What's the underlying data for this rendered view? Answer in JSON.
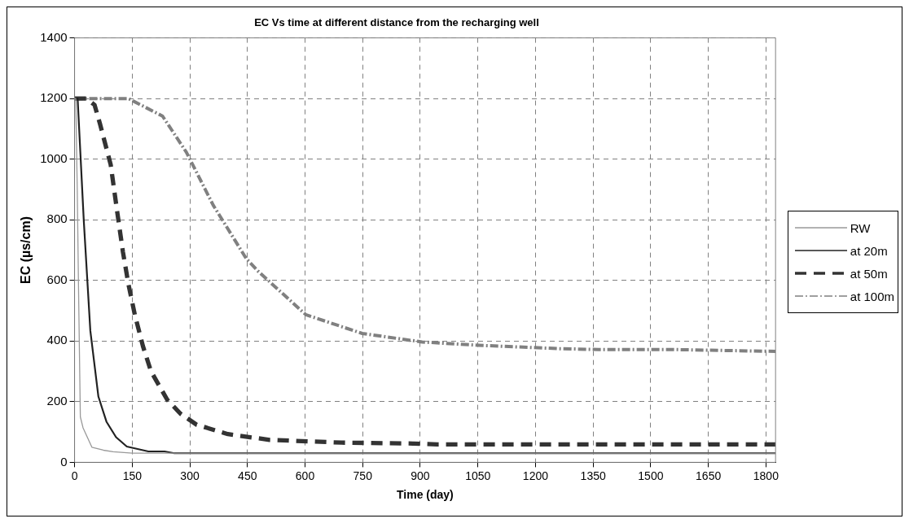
{
  "chart_data": {
    "type": "line",
    "title": "EC Vs time at different distance from the recharging well",
    "xlabel": "Time (day)",
    "ylabel": "EC (µs/cm)",
    "xlim": [
      0,
      1825
    ],
    "xticks": [
      0,
      150,
      300,
      450,
      600,
      750,
      900,
      1050,
      1200,
      1350,
      1500,
      1650,
      1800
    ],
    "ylim": [
      0,
      1400
    ],
    "yticks": [
      0,
      200,
      400,
      600,
      800,
      1000,
      1200,
      1400
    ],
    "grid": true,
    "legend": "right",
    "marker": "none",
    "series": [
      {
        "name": "RW",
        "color": "#999999",
        "line_style": "solid",
        "x": [
          0,
          3,
          7,
          10,
          15,
          22,
          45,
          75,
          100,
          150,
          300,
          600,
          900,
          1200,
          1500,
          1825
        ],
        "values": [
          1200,
          1200,
          900,
          600,
          150,
          114,
          50,
          40,
          35,
          30,
          30,
          30,
          30,
          30,
          30,
          30
        ]
      },
      {
        "name": "at 20m",
        "color": "#222222",
        "line_style": "solid",
        "x": [
          0,
          8,
          10,
          24,
          41,
          62,
          83,
          108,
          136,
          192,
          234,
          260,
          600,
          1000,
          1400,
          1825
        ],
        "values": [
          1200,
          1200,
          1148,
          796,
          434,
          217,
          134,
          83,
          52,
          36,
          36,
          30,
          30,
          30,
          30,
          30
        ]
      },
      {
        "name": "at 50m",
        "color": "#333333",
        "line_style": "dashed",
        "x": [
          0,
          31,
          52,
          66,
          94,
          112,
          126,
          140,
          157,
          178,
          199,
          241,
          276,
          318,
          399,
          508,
          695,
          881,
          944,
          1200,
          1500,
          1825
        ],
        "values": [
          1200,
          1200,
          1179,
          1117,
          982,
          817,
          693,
          589,
          486,
          383,
          300,
          207,
          160,
          124,
          93,
          74,
          65,
          62,
          59,
          59,
          59,
          59
        ]
      },
      {
        "name": "at 100m",
        "color": "#808080",
        "line_style": "dotted",
        "x": [
          0,
          140,
          229,
          291,
          361,
          447,
          478,
          602,
          749,
          905,
          1052,
          1261,
          1364,
          1557,
          1825
        ],
        "values": [
          1200,
          1200,
          1142,
          1023,
          848,
          672,
          630,
          487,
          425,
          397,
          386,
          375,
          372,
          372,
          366
        ]
      }
    ]
  }
}
